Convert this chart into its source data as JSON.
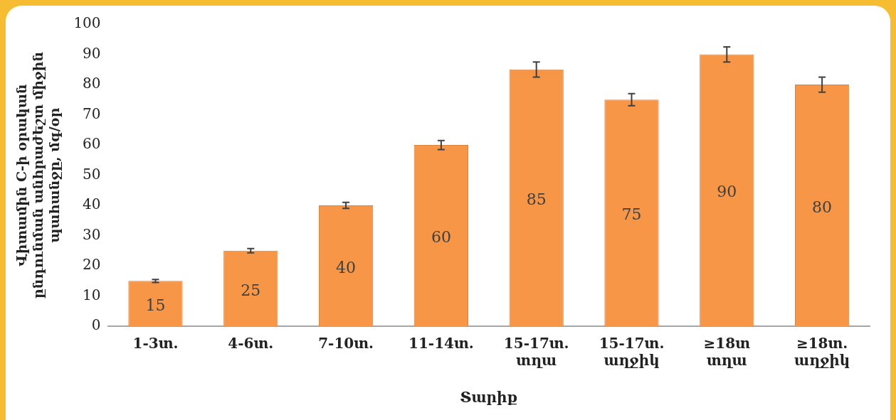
{
  "chart_data": {
    "type": "bar",
    "xlabel": "Տարիք",
    "ylabel": "Վիտամին C-ի օրական ընդունման անհրաժեշտ միջին պահանջը, մգ/օր",
    "categories": [
      "1-3տ.",
      "4-6տ.",
      "7-10տ.",
      "11-14տ.",
      "15-17տ. տղա",
      "15-17տ. աղջիկ",
      "≥18տ տղա",
      "≥18տ. աղջիկ"
    ],
    "values": [
      15,
      25,
      40,
      60,
      85,
      75,
      90,
      80
    ],
    "errors": [
      0.5,
      0.7,
      1,
      1.5,
      2.5,
      2,
      2.5,
      2.5
    ],
    "color": "#f79646",
    "ylim": [
      0,
      100
    ],
    "yticks": [
      0,
      10,
      20,
      30,
      40,
      50,
      60,
      70,
      80,
      90,
      100
    ],
    "grid": false,
    "legend": false,
    "data_labels": true
  }
}
